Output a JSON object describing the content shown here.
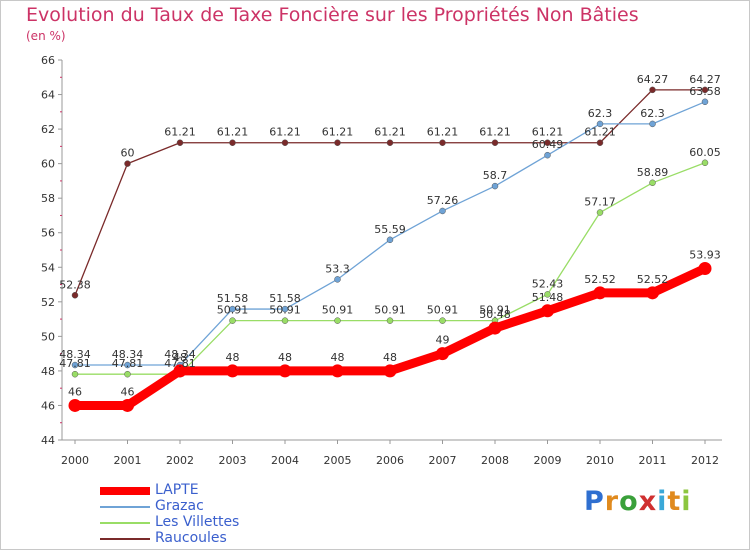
{
  "title": "Evolution du Taux de Taxe Foncière sur les Propriétés Non Bâties",
  "unit_label": "(en %)",
  "logo": {
    "text": "Proxiti",
    "letters": [
      "P",
      "r",
      "o",
      "x",
      "i",
      "t",
      "i"
    ],
    "colors": [
      "#2f6fd0",
      "#e08a1e",
      "#3aa03a",
      "#d03030",
      "#3aa8d8",
      "#e08a1e",
      "#8cc63f"
    ]
  },
  "chart_data": {
    "type": "line",
    "x": [
      "2000",
      "2001",
      "2002",
      "2003",
      "2004",
      "2005",
      "2006",
      "2007",
      "2008",
      "2009",
      "2010",
      "2011",
      "2012"
    ],
    "ylim": [
      44,
      66
    ],
    "yticks": [
      44,
      46,
      48,
      50,
      52,
      54,
      56,
      58,
      60,
      62,
      64,
      66
    ],
    "grid": false,
    "legend_position": "bottom-left",
    "series": [
      {
        "name": "LAPTE",
        "color": "#ff0000",
        "values": [
          46,
          46,
          48,
          48,
          48,
          48,
          48,
          49,
          50.48,
          51.48,
          52.52,
          52.52,
          53.93
        ],
        "labels": [
          "46",
          "46",
          "48",
          "48",
          "48",
          "48",
          "48",
          "49",
          "50.48",
          "51.48",
          "52.52",
          "52.52",
          "53.93"
        ]
      },
      {
        "name": "Grazac",
        "color": "#6fa3d6",
        "values": [
          48.34,
          48.34,
          48.34,
          51.58,
          51.58,
          53.3,
          55.59,
          57.26,
          58.7,
          60.49,
          62.3,
          62.3,
          63.58
        ],
        "labels": [
          "48.34",
          "48.34",
          "48.34",
          "51.58",
          "51.58",
          "53.3",
          "55.59",
          "57.26",
          "58.7",
          "60.49",
          "62.3",
          "62.3",
          "63.58"
        ]
      },
      {
        "name": "Les Villettes",
        "color": "#99dd66",
        "values": [
          47.81,
          47.81,
          47.81,
          50.91,
          50.91,
          50.91,
          50.91,
          50.91,
          50.91,
          52.43,
          57.17,
          58.89,
          60.05
        ],
        "labels": [
          "47.81",
          "47.81",
          "47.81",
          "50.91",
          "50.91",
          "50.91",
          "50.91",
          "50.91",
          "50.91",
          "52.43",
          "57.17",
          "58.89",
          "60.05"
        ]
      },
      {
        "name": "Raucoules",
        "color": "#7a2a2a",
        "values": [
          52.38,
          60,
          61.21,
          61.21,
          61.21,
          61.21,
          61.21,
          61.21,
          61.21,
          61.21,
          61.21,
          64.27,
          64.27
        ],
        "labels": [
          "52.38",
          "60",
          "61.21",
          "61.21",
          "61.21",
          "61.21",
          "61.21",
          "61.21",
          "61.21",
          "61.21",
          "61.21",
          "64.27",
          "64.27"
        ]
      }
    ]
  }
}
